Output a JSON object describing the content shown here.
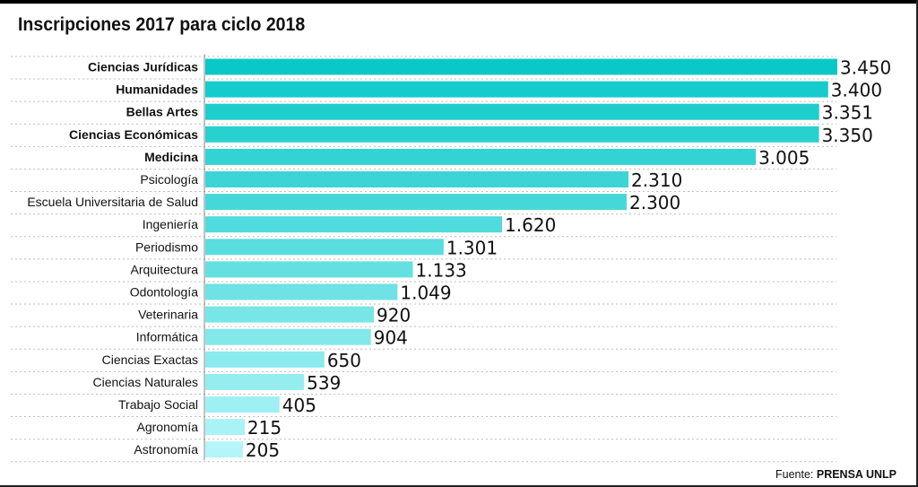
{
  "title": "Inscripciones 2017 para ciclo 2018",
  "source": {
    "label": "Fuente:",
    "name": "PRENSA UNLP"
  },
  "chart_data": {
    "type": "bar",
    "orientation": "horizontal",
    "categories": [
      "Ciencias Jurídicas",
      "Humanidades",
      "Bellas Artes",
      "Ciencias Económicas",
      "Medicina",
      "Psicología",
      "Escuela Universitaria de Salud",
      "Ingeniería",
      "Periodismo",
      "Arquitectura",
      "Odontología",
      "Veterinaria",
      "Informática",
      "Ciencias Exactas",
      "Ciencias Naturales",
      "Trabajo Social",
      "Agronomía",
      "Astronomía"
    ],
    "values": [
      3450,
      3400,
      3351,
      3350,
      3005,
      2310,
      2300,
      1620,
      1301,
      1133,
      1049,
      920,
      904,
      650,
      539,
      405,
      215,
      205
    ],
    "value_labels": [
      "3.450",
      "3.400",
      "3.351",
      "3.350",
      "3.005",
      "2.310",
      "2.300",
      "1.620",
      "1.301",
      "1.133",
      "1.049",
      "920",
      "904",
      "650",
      "539",
      "405",
      "215",
      "205"
    ],
    "bold_categories": [
      "Ciencias Jurídicas",
      "Humanidades",
      "Bellas Artes",
      "Ciencias Económicas",
      "Medicina"
    ],
    "xlim": [
      0,
      3450
    ],
    "grid": "dotted horizontal",
    "color_dark": "#0bc8c8",
    "color_light": "#b3f5f8"
  }
}
